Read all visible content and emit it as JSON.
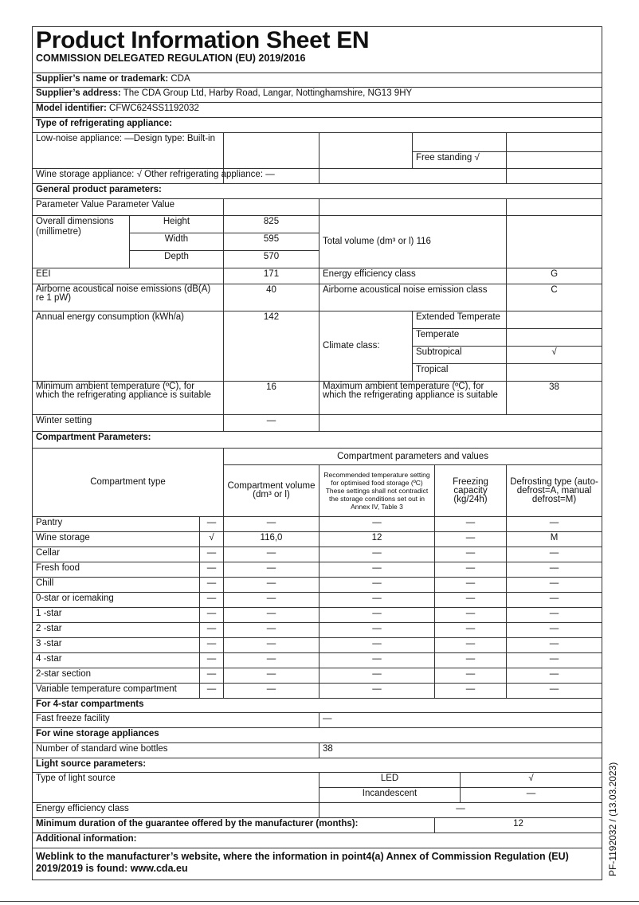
{
  "title": "Product Information Sheet  EN",
  "regulation": "COMMISSION DELEGATED REGULATION (EU) 2019/2016",
  "supplier_name_label": "Supplier’s name or trademark:",
  "supplier_name": "CDA",
  "supplier_address_label": "Supplier’s address:",
  "supplier_address": "The CDA Group Ltd, Harby Road, Langar, Nottinghamshire, NG13 9HY",
  "model_label": "Model identifier:",
  "model": "CFWC624SS1192032",
  "type_heading": "Type of refrigerating appliance:",
  "low_noise": "Low-noise appliance: —Design type: Built-in",
  "free_standing": "Free standing √",
  "wine_storage": "Wine storage appliance: √ Other refrigerating appliance: —",
  "general_heading": "General product parameters:",
  "param_header": "Parameter Value Parameter Value",
  "dimensions": {
    "label": "Overall dimensions (millimetre)",
    "height_label": "Height",
    "height": "825",
    "width_label": "Width",
    "width": "595",
    "depth_label": "Depth",
    "depth": "570",
    "total_volume": "Total volume (dm³ or l) 116"
  },
  "eei": {
    "label": "EEI",
    "value": "171",
    "class_label": "Energy efficiency class",
    "class": "G"
  },
  "noise": {
    "label": "Airborne acoustical noise emissions (dB(A) re 1 pW)",
    "value": "40",
    "class_label": "Airborne acoustical noise emission class",
    "class": "C"
  },
  "energy": {
    "label": "Annual energy consumption (kWh/a)",
    "value": "142"
  },
  "climate": {
    "label": "Climate class:",
    "classes": [
      {
        "name": "Extended Temperate",
        "mark": ""
      },
      {
        "name": "Temperate",
        "mark": ""
      },
      {
        "name": "Subtropical",
        "mark": "√"
      },
      {
        "name": "Tropical",
        "mark": ""
      }
    ]
  },
  "min_ambient": {
    "label": "Minimum ambient temperature (ºC), for which the refrigerating appliance is suitable",
    "value": "16"
  },
  "max_ambient": {
    "label": "Maximum ambient temperature (ºC), for which the refrigerating appliance is suitable",
    "value": "38"
  },
  "winter": {
    "label": "Winter setting",
    "value": "—"
  },
  "compartment_heading": "Compartment Parameters:",
  "compartment_headers": {
    "type": "Compartment type",
    "group": "Compartment parameters and values",
    "volume": "Compartment volume (dm³ or l)",
    "temp": "Recommended temperature setting for optimised food storage (ºC) These settings shall not contradict the storage conditions set out in Annex IV, Table 3",
    "freezing": "Freezing capacity (kg/24h)",
    "defrost": "Defrosting type (auto-defrost=A, manual defrost=M)"
  },
  "compartments": [
    [
      "Pantry",
      "—",
      "—",
      "—",
      "—",
      "—"
    ],
    [
      "Wine storage",
      "√",
      "116,0",
      "12",
      "—",
      "M"
    ],
    [
      "Cellar",
      "—",
      "—",
      "—",
      "—",
      "—"
    ],
    [
      "Fresh food",
      "—",
      "—",
      "—",
      "—",
      "—"
    ],
    [
      "Chill",
      "—",
      "—",
      "—",
      "—",
      "—"
    ],
    [
      "0-star or icemaking",
      "—",
      "—",
      "—",
      "—",
      "—"
    ],
    [
      "1 -star",
      "—",
      "—",
      "—",
      "—",
      "—"
    ],
    [
      "2 -star",
      "—",
      "—",
      "—",
      "—",
      "—"
    ],
    [
      "3 -star",
      "—",
      "—",
      "—",
      "—",
      "—"
    ],
    [
      "4 -star",
      "—",
      "—",
      "—",
      "—",
      "—"
    ],
    [
      "2-star section",
      "—",
      "—",
      "—",
      "—",
      "—"
    ],
    [
      "Variable temperature compartment",
      "—",
      "—",
      "—",
      "—",
      "—"
    ]
  ],
  "four_star_heading": "For 4-star compartments",
  "fast_freeze": {
    "label": "Fast freeze facility",
    "value": "—"
  },
  "wine_heading": "For wine storage appliances",
  "bottles": {
    "label": "Number of standard wine bottles",
    "value": "38"
  },
  "light_heading": "Light source parameters:",
  "light": {
    "label": "Type of light source",
    "led": "LED",
    "led_value": "√",
    "incandescent": "Incandescent",
    "incandescent_value": "—",
    "eff_label": "Energy efficiency class",
    "eff_value": "—"
  },
  "guarantee": {
    "label": "Minimum duration of the guarantee offered by the manufacturer (months):",
    "value": "12"
  },
  "additional_heading": "Additional information:",
  "weblink": "Weblink to the manufacturer’s website, where the information in point4(a) Annex of Commission Regulation (EU) 2019/2019 is found: www.cda.eu",
  "side_ref": "PF-1192032 / (13.03.2023)"
}
